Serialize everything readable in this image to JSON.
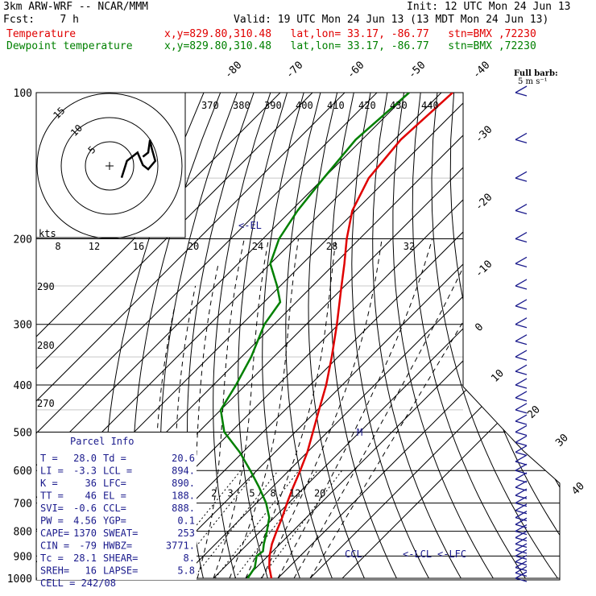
{
  "header": {
    "model": "3km ARW-WRF -- NCAR/MMM",
    "init": "Init: 12 UTC Mon 24 Jun 13",
    "fcst": "Fcst:    7 h",
    "valid": "Valid: 19 UTC Mon 24 Jun 13 (13 MDT Mon 24 Jun 13)",
    "temp_label": "Temperature",
    "temp_info": "x,y=829.80,310.48   lat,lon= 33.17, -86.77   stn=BMX ,72230",
    "dew_label": "Dewpoint temperature",
    "dew_info": "x,y=829.80,310.48   lat,lon= 33.17, -86.77   stn=BMX ,72230"
  },
  "barb_legend": {
    "line1": "Full barb:",
    "line2": "5 m s⁻¹"
  },
  "colors": {
    "temperature": "#e00000",
    "dewpoint": "#008000",
    "info": "#1a1a8c"
  },
  "parcel_info": {
    "title": "Parcel Info",
    "rows": [
      [
        "T  =",
        "28.0",
        "Td =",
        "20.6"
      ],
      [
        "LI =",
        "-3.3",
        "LCL =",
        "894."
      ],
      [
        "K  =",
        "36",
        "LFC=",
        "890."
      ],
      [
        "TT =",
        "46",
        "EL =",
        "188."
      ],
      [
        "SVI=",
        "-0.6",
        "CCL=",
        "888."
      ],
      [
        "PW =",
        "4.56",
        "YGP=",
        "0.1"
      ],
      [
        "CAPE=",
        "1370",
        "SWEAT=",
        "253"
      ],
      [
        "CIN =",
        "-79",
        "HWBZ=",
        "3771."
      ],
      [
        "Tc =",
        "28.1",
        "SHEAR=",
        "8."
      ],
      [
        "SREH=",
        "16",
        "LAPSE=",
        "5.8"
      ]
    ],
    "cell": "CELL = 242/08"
  },
  "levels": {
    "EL": "<-EL",
    "CCL": "CCL",
    "LCL": "<-LCL",
    "LFC": "<-LFC"
  },
  "hodograph": {
    "units": "kts",
    "ring_labels": [
      "5",
      "10",
      "15"
    ],
    "speed_labels": [
      "8",
      "12",
      "16",
      "20",
      "24",
      "28",
      "32"
    ]
  },
  "chart_data": {
    "type": "line",
    "title": "",
    "pressure_levels": [
      100,
      200,
      300,
      400,
      500,
      600,
      700,
      800,
      900,
      1000
    ],
    "pressure_labels": [
      "100",
      "200",
      "300",
      "400",
      "500",
      "600",
      "700",
      "800",
      "900",
      "1000"
    ],
    "isotherm_labels": [
      "-80",
      "-70",
      "-60",
      "-50",
      "-40",
      "-30",
      "-20",
      "-10",
      "0",
      "10",
      "20",
      "30",
      "40"
    ],
    "theta_top_labels": [
      "370",
      "380",
      "390",
      "400",
      "410",
      "420",
      "430",
      "440"
    ],
    "theta_side_labels": [
      "290",
      "280",
      "270"
    ],
    "mixing_ratio_labels": [
      "2",
      "3",
      "5",
      "8",
      "12",
      "20"
    ],
    "M_marker": "M",
    "series": [
      {
        "name": "Temperature",
        "color": "#e00000",
        "points": [
          [
            1000,
            28.0
          ],
          [
            950,
            24.0
          ],
          [
            900,
            20.5
          ],
          [
            850,
            17.5
          ],
          [
            800,
            15.0
          ],
          [
            750,
            12.5
          ],
          [
            700,
            9.5
          ],
          [
            650,
            6.5
          ],
          [
            600,
            3.5
          ],
          [
            550,
            0.0
          ],
          [
            500,
            -4.5
          ],
          [
            450,
            -9.5
          ],
          [
            400,
            -15.0
          ],
          [
            350,
            -22.0
          ],
          [
            300,
            -30.5
          ],
          [
            250,
            -41.0
          ],
          [
            225,
            -47.0
          ],
          [
            200,
            -54.0
          ],
          [
            175,
            -61.0
          ],
          [
            150,
            -66.0
          ],
          [
            125,
            -68.0
          ],
          [
            100,
            -66.5
          ]
        ]
      },
      {
        "name": "Dewpoint temperature",
        "color": "#008000",
        "points": [
          [
            1000,
            20.6
          ],
          [
            950,
            19.5
          ],
          [
            900,
            16.5
          ],
          [
            880,
            17.0
          ],
          [
            850,
            15.0
          ],
          [
            800,
            12.0
          ],
          [
            750,
            8.5
          ],
          [
            700,
            3.0
          ],
          [
            650,
            -4.0
          ],
          [
            600,
            -12.0
          ],
          [
            550,
            -21.0
          ],
          [
            500,
            -32.0
          ],
          [
            450,
            -40.0
          ],
          [
            400,
            -43.0
          ],
          [
            350,
            -47.0
          ],
          [
            300,
            -53.0
          ],
          [
            270,
            -55.0
          ],
          [
            250,
            -61.0
          ],
          [
            225,
            -70.0
          ],
          [
            200,
            -75.0
          ],
          [
            175,
            -78.0
          ],
          [
            150,
            -80.0
          ],
          [
            125,
            -82.0
          ],
          [
            100,
            -80.0
          ]
        ]
      }
    ],
    "hodograph_trace": [
      [
        5,
        2
      ],
      [
        8,
        6
      ],
      [
        14,
        8
      ],
      [
        17,
        5
      ],
      [
        20,
        4
      ],
      [
        24,
        6
      ],
      [
        22,
        9
      ],
      [
        21,
        11
      ],
      [
        20,
        8
      ],
      [
        17,
        7
      ]
    ],
    "wind_barbs_note": "wind barbs plotted along right edge"
  }
}
